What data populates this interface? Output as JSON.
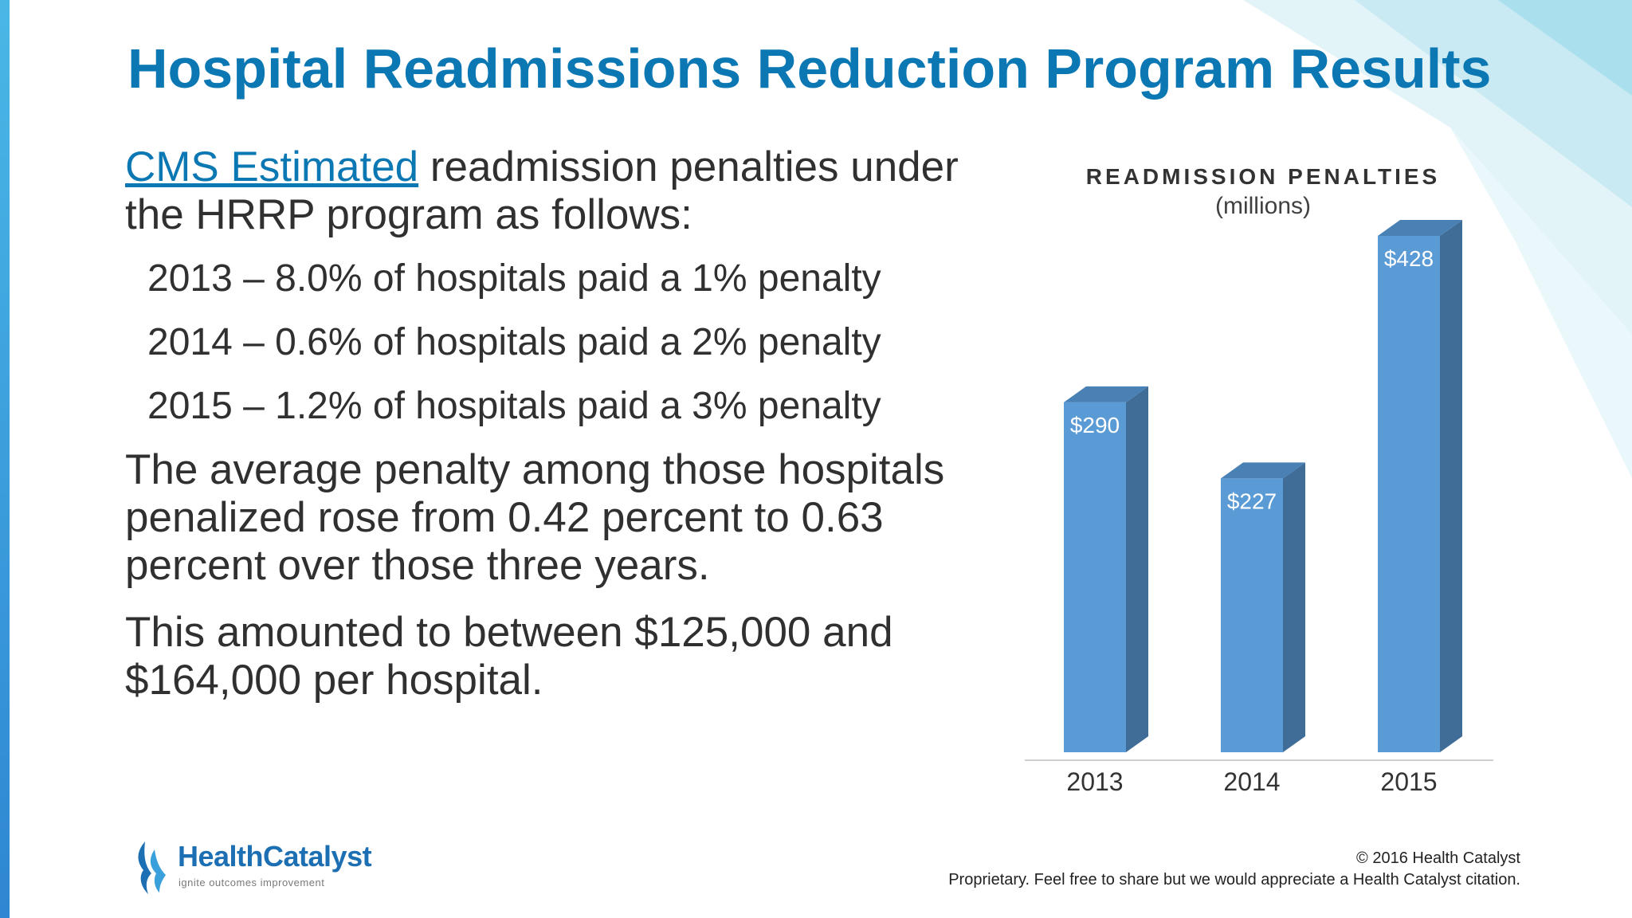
{
  "slide": {
    "title": "Hospital Readmissions Reduction Program Results",
    "intro_link": "CMS Estimated",
    "intro_rest": " readmission penalties under the HRRP program as follows:",
    "bullets": [
      "2013 – 8.0% of hospitals paid a 1% penalty",
      "2014 – 0.6% of hospitals paid a 2% penalty",
      "2015 – 1.2% of hospitals paid a 3% penalty"
    ],
    "avg_penalty_text": "The average penalty among those hospitals penalized rose from 0.42 percent to 0.63 percent over those three years.",
    "amount_text": "This amounted to between $125,000 and $164,000 per hospital."
  },
  "chart_data": {
    "type": "bar",
    "title": "READMISSION PENALTIES",
    "subtitle": "(millions)",
    "categories": [
      "2013",
      "2014",
      "2015"
    ],
    "values": [
      290,
      227,
      428
    ],
    "data_labels": [
      "$290",
      "$227",
      "$428"
    ],
    "ylim": [
      0,
      428
    ],
    "grid": false,
    "bar_color": "#5b9bd5",
    "bar_side_color": "#3f6d97"
  },
  "logo": {
    "name": "HealthCatalyst",
    "tagline": "ignite outcomes improvement"
  },
  "footer": {
    "copyright": "© 2016 Health Catalyst",
    "notice": "Proprietary. Feel free to share but we would appreciate a Health Catalyst citation."
  },
  "colors": {
    "title": "#0b77b3",
    "body_text": "#303030",
    "accent_stripe": "#2f86d2"
  }
}
